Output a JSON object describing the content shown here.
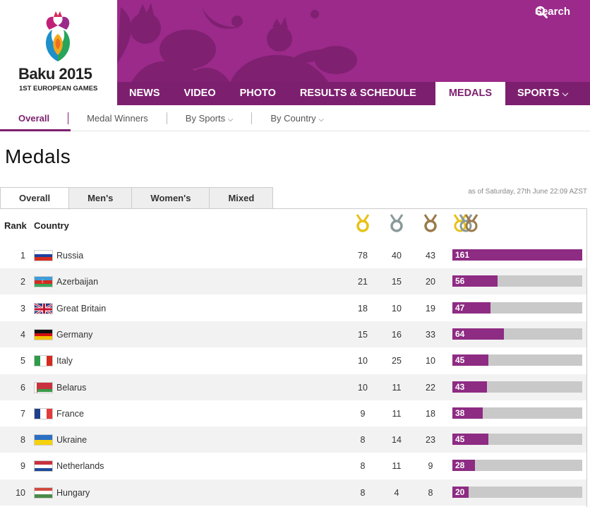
{
  "brand": {
    "title": "Baku 2015",
    "subtitle": "1ST EUROPEAN GAMES"
  },
  "search_label": "Search",
  "nav": [
    "NEWS",
    "VIDEO",
    "PHOTO",
    "RESULTS & SCHEDULE",
    "MEDALS",
    "SPORTS"
  ],
  "subnav": [
    "Overall",
    "Medal Winners",
    "By Sports",
    "By Country"
  ],
  "page_title": "Medals",
  "tabs": [
    "Overall",
    "Men's",
    "Women's",
    "Mixed"
  ],
  "as_of": "as of Saturday, 27th June 22:09 AZST",
  "headers": {
    "rank": "Rank",
    "country": "Country"
  },
  "colors": {
    "purple": "#8e2b83",
    "gold": "#e7c21a",
    "silver": "#8a9a9a",
    "bronze": "#9b7a4a"
  },
  "rows": [
    {
      "rank": "1",
      "country": "Russia",
      "gold": "78",
      "silver": "40",
      "bronze": "43",
      "total": "161",
      "flag": "russia"
    },
    {
      "rank": "2",
      "country": "Azerbaijan",
      "gold": "21",
      "silver": "15",
      "bronze": "20",
      "total": "56",
      "flag": "azerbaijan"
    },
    {
      "rank": "3",
      "country": "Great Britain",
      "gold": "18",
      "silver": "10",
      "bronze": "19",
      "total": "47",
      "flag": "uk"
    },
    {
      "rank": "4",
      "country": "Germany",
      "gold": "15",
      "silver": "16",
      "bronze": "33",
      "total": "64",
      "flag": "germany"
    },
    {
      "rank": "5",
      "country": "Italy",
      "gold": "10",
      "silver": "25",
      "bronze": "10",
      "total": "45",
      "flag": "italy"
    },
    {
      "rank": "6",
      "country": "Belarus",
      "gold": "10",
      "silver": "11",
      "bronze": "22",
      "total": "43",
      "flag": "belarus"
    },
    {
      "rank": "7",
      "country": "France",
      "gold": "9",
      "silver": "11",
      "bronze": "18",
      "total": "38",
      "flag": "france"
    },
    {
      "rank": "8",
      "country": "Ukraine",
      "gold": "8",
      "silver": "14",
      "bronze": "23",
      "total": "45",
      "flag": "ukraine"
    },
    {
      "rank": "9",
      "country": "Netherlands",
      "gold": "8",
      "silver": "11",
      "bronze": "9",
      "total": "28",
      "flag": "netherlands"
    },
    {
      "rank": "10",
      "country": "Hungary",
      "gold": "8",
      "silver": "4",
      "bronze": "8",
      "total": "20",
      "flag": "hungary"
    }
  ]
}
